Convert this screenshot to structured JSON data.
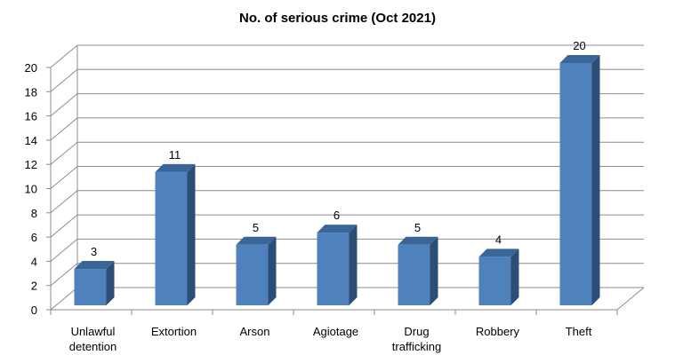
{
  "chart_data": {
    "type": "bar",
    "title": "No. of serious crime (Oct 2021)",
    "categories": [
      [
        "Unlawful",
        "detention"
      ],
      [
        "Extortion"
      ],
      [
        "Arson"
      ],
      [
        "Agiotage"
      ],
      [
        "Drug",
        "trafficking"
      ],
      [
        "Robbery"
      ],
      [
        "Theft"
      ]
    ],
    "values": [
      3,
      11,
      5,
      6,
      5,
      4,
      20
    ],
    "ylim": [
      0,
      20
    ],
    "yticks": [
      0,
      2,
      4,
      6,
      8,
      10,
      12,
      14,
      16,
      18,
      20
    ],
    "grid": true,
    "legend": "none",
    "colors": {
      "bar_front": "#4f81bd",
      "bar_side": "#2c4d75",
      "bar_top": "#3a6597"
    }
  }
}
